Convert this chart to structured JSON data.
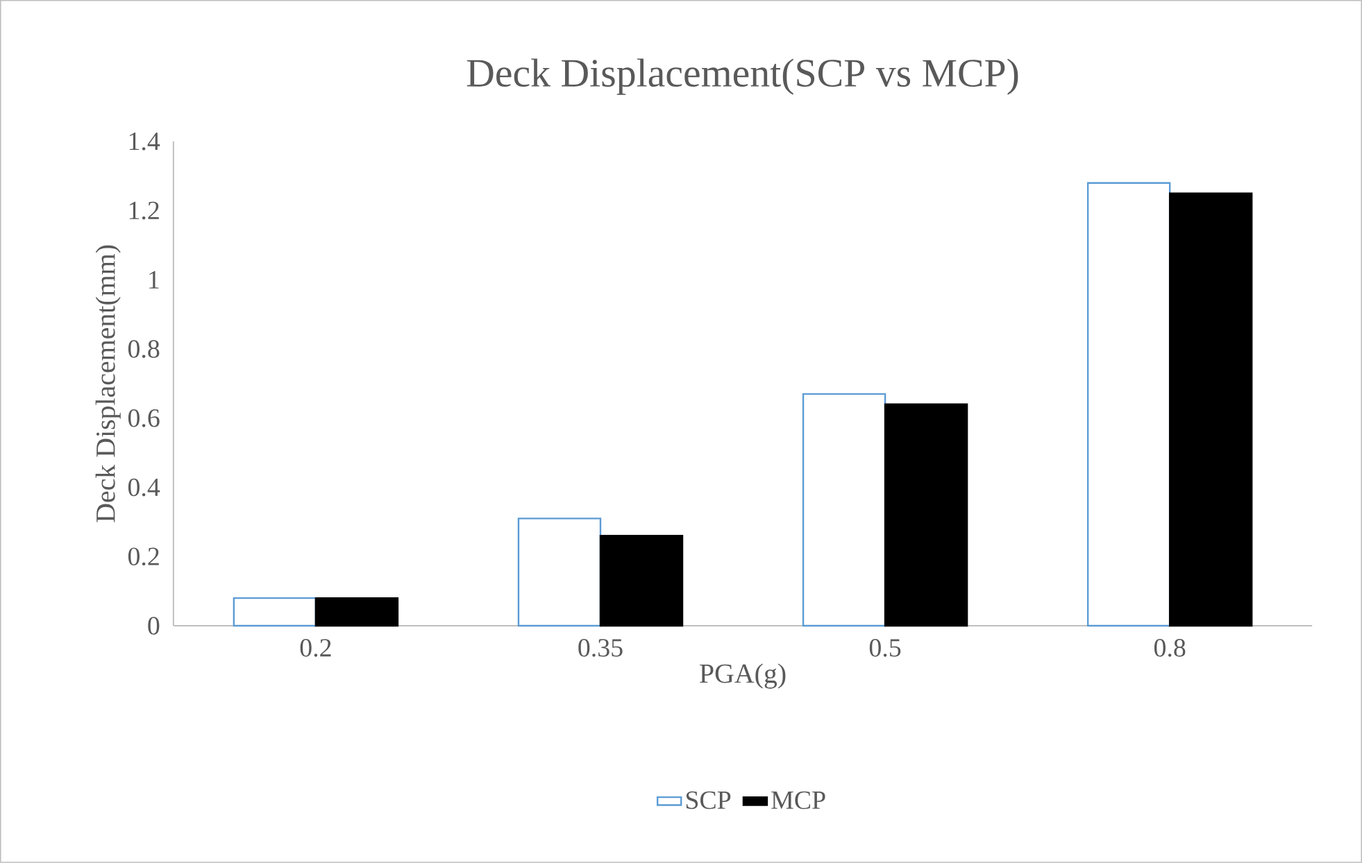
{
  "chart_data": {
    "type": "bar",
    "title": "Deck Displacement(SCP vs MCP)",
    "xlabel": "PGA(g)",
    "ylabel": "Deck Displacement(mm)",
    "categories": [
      "0.2",
      "0.35",
      "0.5",
      "0.8"
    ],
    "series": [
      {
        "name": "SCP",
        "color": "#5b9bd5",
        "values": [
          0.08,
          0.31,
          0.67,
          1.28
        ]
      },
      {
        "name": "MCP",
        "color": "#000000",
        "values": [
          0.08,
          0.26,
          0.64,
          1.25
        ]
      }
    ],
    "ylim": [
      0,
      1.4
    ],
    "yticks": [
      0,
      0.2,
      0.4,
      0.6,
      0.8,
      1,
      1.2,
      1.4
    ],
    "grid": false,
    "legend": "bottom"
  }
}
